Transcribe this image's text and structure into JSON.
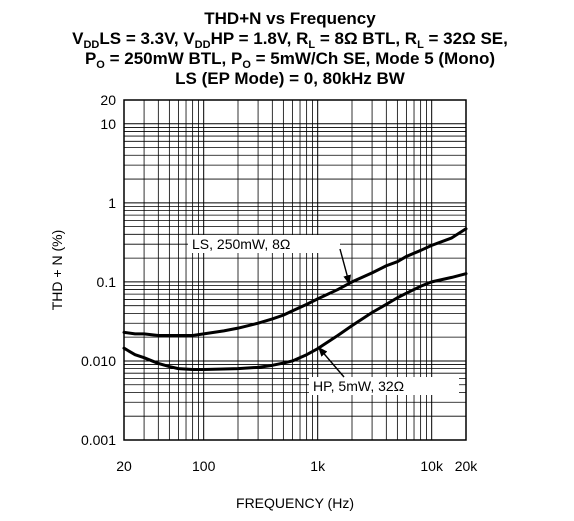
{
  "chart_data": {
    "type": "line",
    "title": "THD+N vs Frequency",
    "subtitle_lines": [
      [
        {
          "t": "V",
          "s": "n"
        },
        {
          "t": "DD",
          "s": "sub"
        },
        {
          "t": "LS = 3.3V, V",
          "s": "n"
        },
        {
          "t": "DD",
          "s": "sub"
        },
        {
          "t": "HP = 1.8V, R",
          "s": "n"
        },
        {
          "t": "L",
          "s": "sub"
        },
        {
          "t": " = 8Ω BTL, R",
          "s": "n"
        },
        {
          "t": "L",
          "s": "sub"
        },
        {
          "t": " = 32Ω SE,",
          "s": "n"
        }
      ],
      [
        {
          "t": "P",
          "s": "n"
        },
        {
          "t": "O",
          "s": "sub"
        },
        {
          "t": " = 250mW BTL, P",
          "s": "n"
        },
        {
          "t": "O",
          "s": "sub"
        },
        {
          "t": " = 5mW/Ch SE, Mode 5 (Mono)",
          "s": "n"
        }
      ],
      [
        {
          "t": "LS (EP Mode) = 0, 80kHz BW",
          "s": "n"
        }
      ]
    ],
    "xlabel": "FREQUENCY (Hz)",
    "ylabel": "THD + N (%)",
    "xscale": "log",
    "yscale": "log",
    "xlim": [
      20,
      20000
    ],
    "ylim": [
      0.001,
      20
    ],
    "x_ticks": [
      {
        "value": 20,
        "label": "20"
      },
      {
        "value": 100,
        "label": "100"
      },
      {
        "value": 1000,
        "label": "1k"
      },
      {
        "value": 10000,
        "label": "10k"
      },
      {
        "value": 20000,
        "label": "20k"
      }
    ],
    "y_ticks": [
      {
        "value": 0.001,
        "label": "0.001"
      },
      {
        "value": 0.01,
        "label": "0.010"
      },
      {
        "value": 0.1,
        "label": "0.1"
      },
      {
        "value": 1,
        "label": "1"
      },
      {
        "value": 10,
        "label": "10"
      },
      {
        "value": 20,
        "label": "20"
      }
    ],
    "grid": true,
    "series": [
      {
        "name": "LS, 250mW, 8Ω",
        "color": "#000000",
        "x": [
          20,
          25,
          30,
          40,
          50,
          60,
          80,
          100,
          150,
          200,
          300,
          400,
          500,
          600,
          800,
          1000,
          1500,
          2000,
          3000,
          4000,
          5000,
          6000,
          8000,
          10000,
          15000,
          20000
        ],
        "y": [
          0.023,
          0.022,
          0.022,
          0.021,
          0.021,
          0.021,
          0.021,
          0.022,
          0.024,
          0.026,
          0.03,
          0.034,
          0.038,
          0.043,
          0.052,
          0.061,
          0.08,
          0.1,
          0.13,
          0.16,
          0.18,
          0.21,
          0.25,
          0.29,
          0.36,
          0.47
        ]
      },
      {
        "name": "HP, 5mW, 32Ω",
        "color": "#000000",
        "x": [
          20,
          25,
          30,
          40,
          50,
          60,
          80,
          100,
          150,
          200,
          300,
          400,
          500,
          600,
          800,
          1000,
          1500,
          2000,
          3000,
          4000,
          5000,
          6000,
          8000,
          10000,
          15000,
          20000
        ],
        "y": [
          0.0145,
          0.012,
          0.011,
          0.0093,
          0.0085,
          0.008,
          0.0078,
          0.0078,
          0.0079,
          0.008,
          0.0083,
          0.0088,
          0.0094,
          0.01,
          0.012,
          0.0143,
          0.021,
          0.028,
          0.041,
          0.052,
          0.063,
          0.072,
          0.088,
          0.1,
          0.114,
          0.127
        ]
      }
    ],
    "annotations": [
      {
        "text": "LS, 250mW, 8Ω",
        "arrow_to": {
          "x": 1900,
          "y": 0.094
        }
      },
      {
        "text": "HP, 5mW, 32Ω",
        "arrow_to": {
          "x": 1020,
          "y": 0.0148
        }
      }
    ]
  }
}
